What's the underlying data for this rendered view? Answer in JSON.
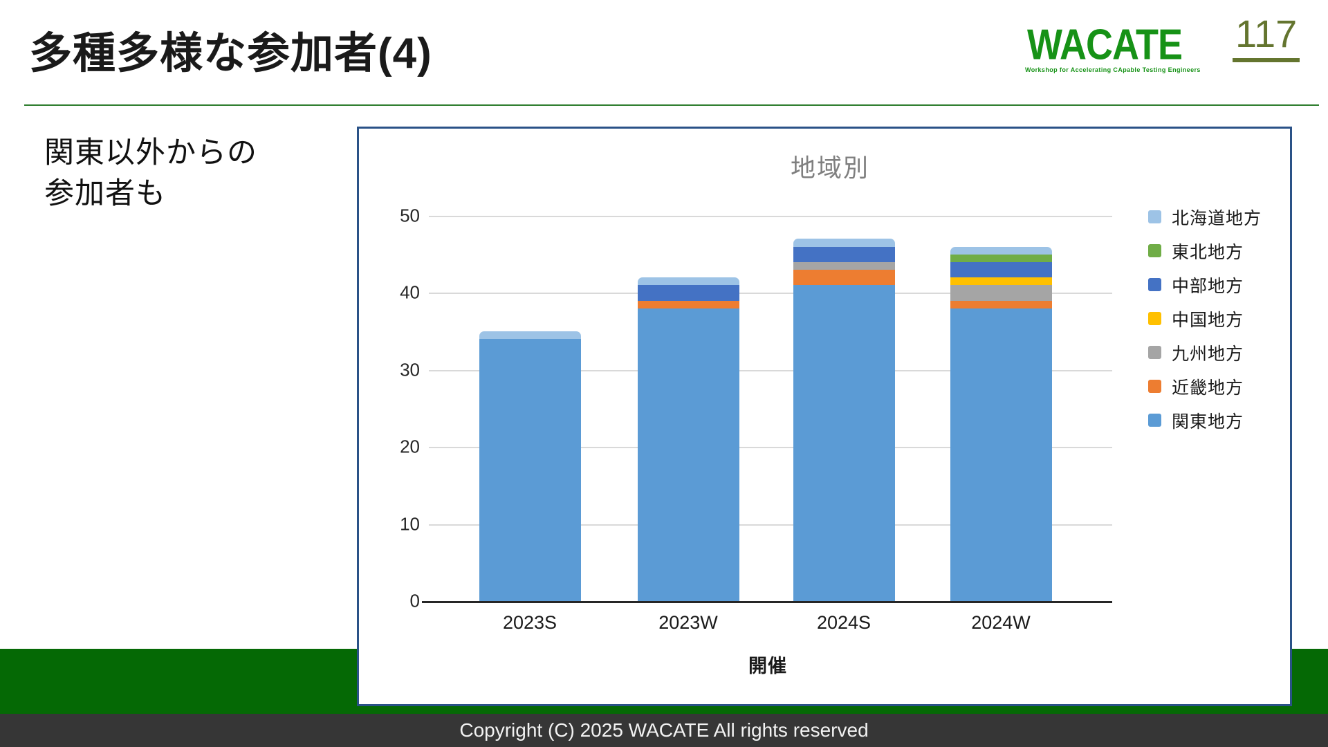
{
  "slide": {
    "title": "多種多様な参加者(4)",
    "page_number": "117",
    "logo": {
      "text": "WACATE",
      "tagline": "Workshop for Accelerating CApable Testing Engineers"
    },
    "body_text_line1": "関東以外からの",
    "body_text_line2": "参加者も",
    "footer": "Copyright (C) 2025 WACATE All rights reserved"
  },
  "colors": {
    "header_rule_green": "#2c7c2c",
    "logo_green": "#169216",
    "page_number_olive": "#64752f",
    "green_band": "#056905",
    "footer_bg": "#363636",
    "chart_border": "#2a5287",
    "gridline": "#d9d9d9",
    "axis": "#262626",
    "chart_title_gray": "#7f7f7f"
  },
  "chart_data": {
    "type": "bar",
    "stacked": true,
    "title": "地域別",
    "xlabel": "開催",
    "ylabel": "",
    "categories": [
      "2023S",
      "2023W",
      "2024S",
      "2024W"
    ],
    "series": [
      {
        "id": "kanto",
        "name": "関東地方",
        "color": "#5B9BD5",
        "values": [
          34,
          38,
          41,
          38
        ]
      },
      {
        "id": "kinki",
        "name": "近畿地方",
        "color": "#ED7D31",
        "values": [
          0,
          1,
          2,
          1
        ]
      },
      {
        "id": "kyushu",
        "name": "九州地方",
        "color": "#A5A5A5",
        "values": [
          0,
          0,
          1,
          2
        ]
      },
      {
        "id": "chugoku",
        "name": "中国地方",
        "color": "#FFC000",
        "values": [
          0,
          0,
          0,
          1
        ]
      },
      {
        "id": "chubu",
        "name": "中部地方",
        "color": "#4472C4",
        "values": [
          0,
          2,
          2,
          2
        ]
      },
      {
        "id": "tohoku",
        "name": "東北地方",
        "color": "#70AD47",
        "values": [
          0,
          0,
          0,
          1
        ]
      },
      {
        "id": "hokkaido",
        "name": "北海道地方",
        "color": "#9DC3E6",
        "values": [
          1,
          1,
          1,
          1
        ]
      }
    ],
    "stack_order_note": "series listed bottom-to-top of stack",
    "totals": [
      35,
      42,
      47,
      46
    ],
    "ylim": [
      0,
      50
    ],
    "yticks": [
      0,
      10,
      20,
      30,
      40,
      50
    ],
    "grid": true,
    "legend_position": "right",
    "legend_order_top_to_bottom": [
      "北海道地方",
      "東北地方",
      "中部地方",
      "中国地方",
      "九州地方",
      "近畿地方",
      "関東地方"
    ]
  }
}
